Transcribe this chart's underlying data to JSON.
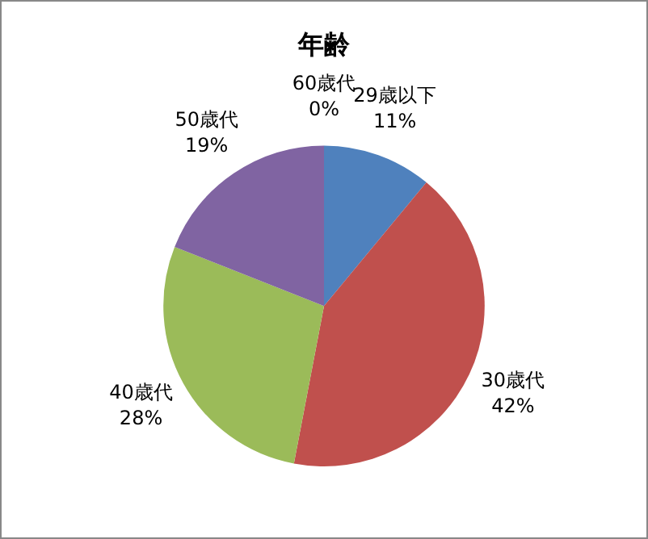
{
  "chart_data": {
    "type": "pie",
    "title": "年齢",
    "categories": [
      "29歳以下",
      "30歳代",
      "40歳代",
      "50歳代",
      "60歳代"
    ],
    "values": [
      11,
      42,
      28,
      19,
      0
    ],
    "value_labels": [
      "11%",
      "42%",
      "28%",
      "19%",
      "0%"
    ],
    "colors": [
      "#4f81bd",
      "#c0504d",
      "#9bbb59",
      "#8064a2",
      "#4bacc6"
    ],
    "legend": false
  }
}
